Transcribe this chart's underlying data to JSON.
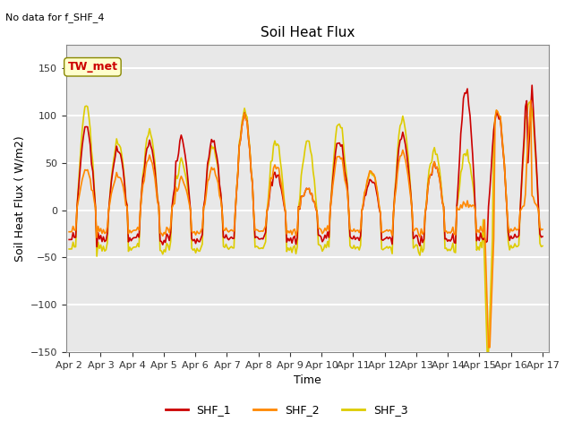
{
  "title": "Soil Heat Flux",
  "subtitle": "No data for f_SHF_4",
  "xlabel": "Time",
  "ylabel": "Soil Heat Flux ( W/m2)",
  "ylim": [
    -150,
    175
  ],
  "yticks": [
    -150,
    -100,
    -50,
    0,
    50,
    100,
    150
  ],
  "xstart": 2,
  "xend": 17,
  "colors": {
    "SHF_1": "#cc0000",
    "SHF_2": "#ff8800",
    "SHF_3": "#ddcc00"
  },
  "legend_labels": [
    "SHF_1",
    "SHF_2",
    "SHF_3"
  ],
  "annotation_text": "TW_met",
  "annotation_bg": "#ffffcc",
  "annotation_edge": "#888800",
  "background_color": "#e8e8e8",
  "figure_bg": "#ffffff",
  "grid_color": "#ffffff",
  "linewidth": 1.2
}
